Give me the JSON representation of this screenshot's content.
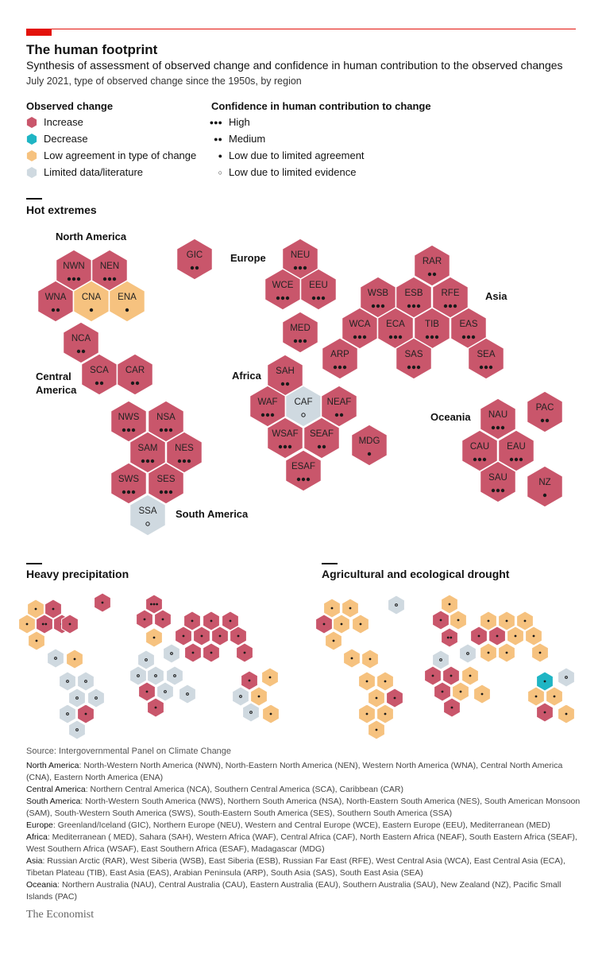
{
  "header": {
    "title": "The human footprint",
    "subtitle": "Synthesis of assessment of observed change and confidence in human contribution to the observed changes",
    "dek": "July 2021, type of observed change since the 1950s, by region"
  },
  "legend": {
    "observed_title": "Observed change",
    "observed": [
      {
        "label": "Increase",
        "color": "#c9566b"
      },
      {
        "label": "Decrease",
        "color": "#1fb5c4"
      },
      {
        "label": "Low agreement in type of change",
        "color": "#f6c27f"
      },
      {
        "label": "Limited data/literature",
        "color": "#cfd9e0"
      }
    ],
    "confidence_title": "Confidence in human contribution to change",
    "confidence": [
      {
        "label": "High",
        "dots": "●●●"
      },
      {
        "label": "Medium",
        "dots": "●●"
      },
      {
        "label": "Low due to limited agreement",
        "dots": "●"
      },
      {
        "label": "Low due to limited evidence",
        "dots": "○"
      }
    ]
  },
  "hot_extremes": {
    "title": "Hot extremes",
    "region_labels": {
      "north_america": "North America",
      "central_america": "Central America",
      "south_america": "South America",
      "europe": "Europe",
      "africa": "Africa",
      "asia": "Asia",
      "oceania": "Oceania"
    }
  },
  "heavy_precipitation": {
    "title": "Heavy precipitation"
  },
  "drought": {
    "title": "Agricultural and ecological drought"
  },
  "chart_data": {
    "type": "hex-tile map",
    "title": "Hot extremes",
    "regions": [
      {
        "code": "NWN",
        "change": "increase",
        "confidence": "high"
      },
      {
        "code": "NEN",
        "change": "increase",
        "confidence": "high"
      },
      {
        "code": "WNA",
        "change": "increase",
        "confidence": "medium"
      },
      {
        "code": "CNA",
        "change": "low agreement",
        "confidence": "low agreement"
      },
      {
        "code": "ENA",
        "change": "low agreement",
        "confidence": "low agreement"
      },
      {
        "code": "NCA",
        "change": "increase",
        "confidence": "medium"
      },
      {
        "code": "SCA",
        "change": "increase",
        "confidence": "medium"
      },
      {
        "code": "CAR",
        "change": "increase",
        "confidence": "medium"
      },
      {
        "code": "NWS",
        "change": "increase",
        "confidence": "high"
      },
      {
        "code": "NSA",
        "change": "increase",
        "confidence": "high"
      },
      {
        "code": "SAM",
        "change": "increase",
        "confidence": "high"
      },
      {
        "code": "NES",
        "change": "increase",
        "confidence": "high"
      },
      {
        "code": "SWS",
        "change": "increase",
        "confidence": "high"
      },
      {
        "code": "SES",
        "change": "increase",
        "confidence": "high"
      },
      {
        "code": "SSA",
        "change": "limited data",
        "confidence": "limited evidence"
      },
      {
        "code": "GIC",
        "change": "increase",
        "confidence": "medium"
      },
      {
        "code": "NEU",
        "change": "increase",
        "confidence": "high"
      },
      {
        "code": "WCE",
        "change": "increase",
        "confidence": "high"
      },
      {
        "code": "EEU",
        "change": "increase",
        "confidence": "high"
      },
      {
        "code": "MED",
        "change": "increase",
        "confidence": "high"
      },
      {
        "code": "SAH",
        "change": "increase",
        "confidence": "medium"
      },
      {
        "code": "WAF",
        "change": "increase",
        "confidence": "high"
      },
      {
        "code": "CAF",
        "change": "limited data",
        "confidence": "limited evidence"
      },
      {
        "code": "NEAF",
        "change": "increase",
        "confidence": "medium"
      },
      {
        "code": "WSAF",
        "change": "increase",
        "confidence": "high"
      },
      {
        "code": "SEAF",
        "change": "increase",
        "confidence": "medium"
      },
      {
        "code": "ESAF",
        "change": "increase",
        "confidence": "high"
      },
      {
        "code": "MDG",
        "change": "increase",
        "confidence": "low agreement"
      },
      {
        "code": "RAR",
        "change": "increase",
        "confidence": "medium"
      },
      {
        "code": "WSB",
        "change": "increase",
        "confidence": "high"
      },
      {
        "code": "ESB",
        "change": "increase",
        "confidence": "high"
      },
      {
        "code": "RFE",
        "change": "increase",
        "confidence": "high"
      },
      {
        "code": "WCA",
        "change": "increase",
        "confidence": "high"
      },
      {
        "code": "ECA",
        "change": "increase",
        "confidence": "high"
      },
      {
        "code": "TIB",
        "change": "increase",
        "confidence": "high"
      },
      {
        "code": "EAS",
        "change": "increase",
        "confidence": "high"
      },
      {
        "code": "ARP",
        "change": "increase",
        "confidence": "high"
      },
      {
        "code": "SAS",
        "change": "increase",
        "confidence": "high"
      },
      {
        "code": "SEA",
        "change": "increase",
        "confidence": "high"
      },
      {
        "code": "NAU",
        "change": "increase",
        "confidence": "high"
      },
      {
        "code": "PAC",
        "change": "increase",
        "confidence": "medium"
      },
      {
        "code": "CAU",
        "change": "increase",
        "confidence": "high"
      },
      {
        "code": "EAU",
        "change": "increase",
        "confidence": "high"
      },
      {
        "code": "SAU",
        "change": "increase",
        "confidence": "high"
      },
      {
        "code": "NZ",
        "change": "increase",
        "confidence": "low agreement"
      }
    ]
  },
  "footer": {
    "source": "Source: Intergovernmental Panel on Climate Change",
    "notes": [
      {
        "k": "North America",
        "v": ": North-Western North America (NWN), North-Eastern North America (NEN), Western North America (WNA), Central North America (CNA), Eastern North America (ENA)"
      },
      {
        "k": "Central America",
        "v": ": Northern Central America (NCA), Southern Central America (SCA), Caribbean (CAR)"
      },
      {
        "k": "South America",
        "v": ": North-Western South America (NWS), Northern South America (NSA), North-Eastern South America (NES), South American Monsoon (SAM), South-Western South America (SWS), South-Eastern South America (SES), Southern South America (SSA)"
      },
      {
        "k": "Europe",
        "v": ": Greenland/Iceland (GIC), Northern Europe (NEU), Western and Central Europe (WCE), Eastern Europe (EEU), Mediterranean (MED)"
      },
      {
        "k": "Africa",
        "v": ": Mediterranean ( MED), Sahara (SAH), Western Africa (WAF), Central Africa (CAF), North Eastern Africa (NEAF), South Eastern Africa (SEAF), West Southern Africa (WSAF), East Southern Africa (ESAF), Madagascar (MDG)"
      },
      {
        "k": "Asia",
        "v": ": Russian Arctic (RAR), West Siberia (WSB), East Siberia (ESB), Russian Far East (RFE), West Central Asia (WCA), East Central Asia (ECA), Tibetan Plateau (TIB), East Asia (EAS), Arabian Peninsula (ARP), South Asia (SAS), South East Asia (SEA)"
      },
      {
        "k": "Oceania",
        "v": ": Northern Australia (NAU), Central Australia (CAU), Eastern Australia (EAU), Southern Australia (SAU), New Zealand (NZ), Pacific Small Islands (PAC)"
      }
    ],
    "logo": "The Economist"
  }
}
